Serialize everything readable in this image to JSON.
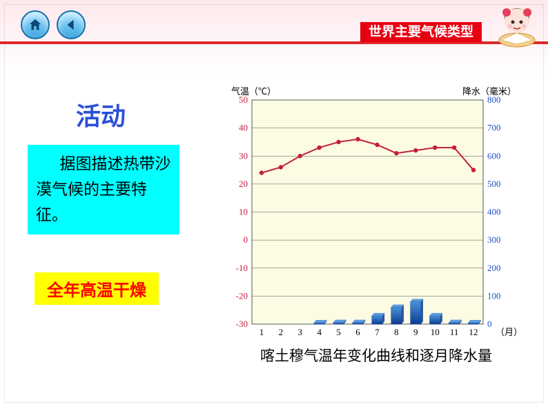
{
  "header": {
    "title": "世界主要气候类型",
    "bg_color": "#e60012",
    "text_color": "#ffffff"
  },
  "nav": {
    "home_icon": "home-icon",
    "back_icon": "back-icon"
  },
  "activity": {
    "title": "活动",
    "title_color": "#2a4fd8",
    "description": "据图描述热带沙漠气候的主要特征。",
    "desc_bg": "#00ffff",
    "answer": "全年高温干燥",
    "answer_bg": "#ffff00",
    "answer_color": "#ff0000"
  },
  "chart": {
    "caption": "喀土穆气温年变化曲线和逐月降水量",
    "months": [
      1,
      2,
      3,
      4,
      5,
      6,
      7,
      8,
      9,
      10,
      11,
      12
    ],
    "x_axis_label": "（月）",
    "temp_axis": {
      "label": "气温（℃）",
      "min": -30,
      "max": 50,
      "step": 10,
      "color": "#c41e3a"
    },
    "precip_axis": {
      "label": "降水（毫米）",
      "min": 0,
      "max": 800,
      "step": 100,
      "color": "#1e50c4"
    },
    "temperature_values": [
      24,
      26,
      30,
      33,
      35,
      36,
      34,
      31,
      32,
      33,
      33,
      25
    ],
    "precipitation_values": [
      0,
      0,
      0,
      5,
      6,
      6,
      30,
      60,
      80,
      30,
      6,
      5
    ],
    "plot_bg": "#fcfbe3",
    "grid_color": "#555555",
    "temp_line_color": "#c41e3a",
    "bar_color_top": "#4a90d9",
    "bar_color_bottom": "#0b3d91",
    "bar_width": 0.55,
    "marker": "circle",
    "line_width": 2,
    "font_size_axis": 13,
    "font_size_tick": 13
  }
}
